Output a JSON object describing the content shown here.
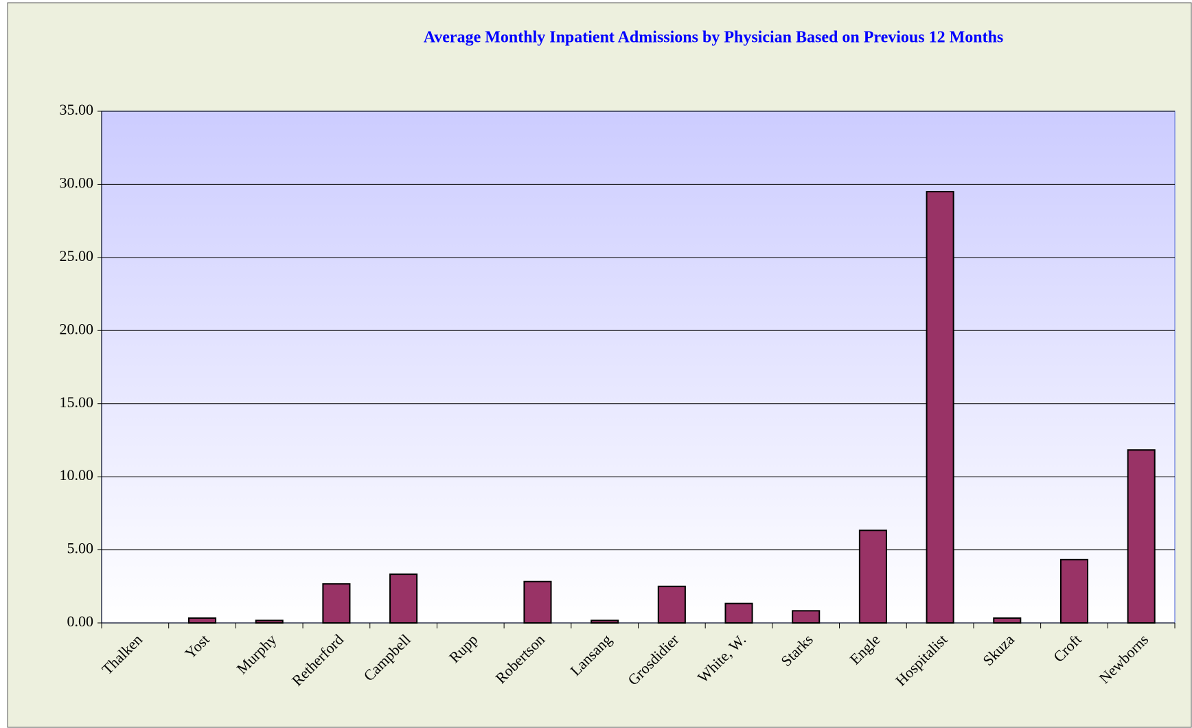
{
  "chart_data": {
    "type": "bar",
    "title": "Average Monthly Inpatient Admissions by Physician Based on Previous 12 Months",
    "categories": [
      "Thalken",
      "Yost",
      "Murphy",
      "Retherford",
      "Campbell",
      "Rupp",
      "Robertson",
      "Lansang",
      "Grosdidier",
      "White, W.",
      "Starks",
      "Engle",
      "Hospitalist",
      "Skuza",
      "Croft",
      "Newborns"
    ],
    "values": [
      0,
      0.33,
      0.17,
      2.67,
      3.33,
      0,
      2.83,
      0.17,
      2.5,
      1.33,
      0.83,
      6.33,
      29.5,
      0.33,
      4.33,
      11.83
    ],
    "color": "#993366",
    "ylim": [
      0,
      35
    ],
    "yticks": [
      {
        "value": 0,
        "label": "0.00"
      },
      {
        "value": 5,
        "label": "5.00"
      },
      {
        "value": 10,
        "label": "10.00"
      },
      {
        "value": 15,
        "label": "15.00"
      },
      {
        "value": 20,
        "label": "20.00"
      },
      {
        "value": 25,
        "label": "25.00"
      },
      {
        "value": 30,
        "label": "30.00"
      },
      {
        "value": 35,
        "label": "35.00"
      }
    ],
    "grid": true
  }
}
